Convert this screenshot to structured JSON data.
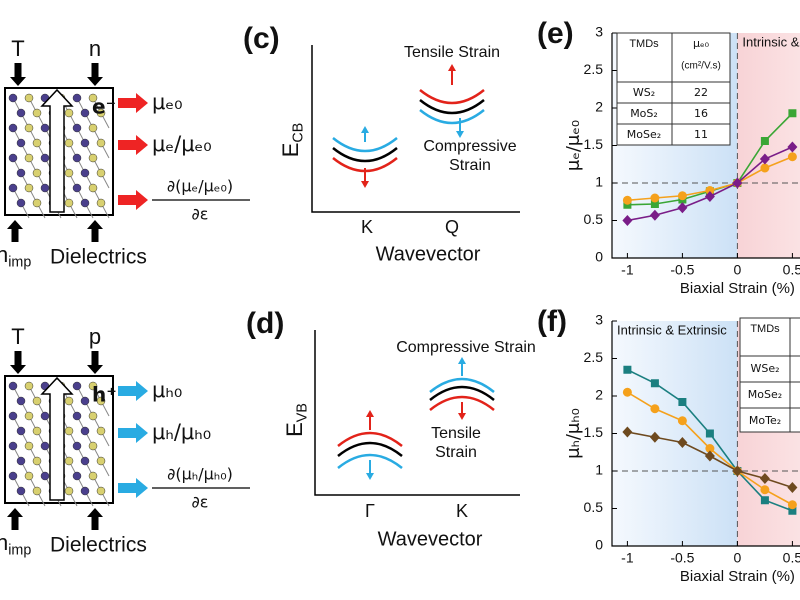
{
  "schematics": [
    {
      "top": [
        "T",
        "n"
      ],
      "carrier": "e⁻",
      "outputs": [
        "μₑ₀",
        "μₑ/μₑ₀"
      ],
      "derivative": {
        "numerator": "∂(μₑ/μₑ₀)",
        "denominator": "∂ε"
      },
      "bottom": {
        "impurity": {
          "base": "n",
          "sub": "imp"
        },
        "dielectrics": "Dielectrics"
      }
    },
    {
      "top": [
        "T",
        "p"
      ],
      "carrier": "h⁺",
      "outputs": [
        "μₕ₀",
        "μₕ/μₕ₀"
      ],
      "derivative": {
        "numerator": "∂(μₕ/μₕ₀)",
        "denominator": "∂ε"
      },
      "bottom": {
        "impurity": {
          "base": "n",
          "sub": "imp"
        },
        "dielectrics": "Dielectrics"
      }
    }
  ],
  "band_diagrams": [
    {
      "label": "(c)",
      "y_axis": {
        "base": "E",
        "sub": "CB"
      },
      "x_axis": "Wavevector",
      "valleys": [
        "K",
        "Q"
      ],
      "tensile": [
        "Tensile Strain"
      ],
      "compressive": [
        "Compressive",
        "Strain"
      ]
    },
    {
      "label": "(d)",
      "y_axis": {
        "base": "E",
        "sub": "VB"
      },
      "x_axis": "Wavevector",
      "valleys": [
        "Γ",
        "K"
      ],
      "tensile": [
        "Tensile",
        "Strain"
      ],
      "compressive": [
        "Compressive Strain"
      ]
    }
  ],
  "chart_data": [
    {
      "type": "line",
      "label": "(e)",
      "x_label": "Biaxial Strain (%)",
      "y_label": "μₑ/μₑ₀",
      "x": [
        -1,
        -0.75,
        -0.5,
        -0.25,
        0,
        0.25,
        0.5
      ],
      "series": [
        {
          "color": "#3aa635",
          "marker": "square",
          "values": [
            0.71,
            0.72,
            0.78,
            0.89,
            1,
            1.56,
            1.93
          ]
        },
        {
          "color": "#f5a11c",
          "marker": "circle",
          "values": [
            0.77,
            0.8,
            0.83,
            0.9,
            1,
            1.2,
            1.35
          ]
        },
        {
          "color": "#7a1d88",
          "marker": "diamond",
          "values": [
            0.5,
            0.57,
            0.67,
            0.82,
            1,
            1.32,
            1.48
          ]
        }
      ],
      "xlim": [
        -1.14,
        1.2
      ],
      "ylim": [
        0,
        3
      ],
      "xticks": [
        -1,
        -0.5,
        0,
        0.5
      ],
      "yticks": [
        0,
        0.5,
        1,
        1.5,
        2,
        2.5,
        3
      ],
      "reference_lines": {
        "x": 0,
        "y": 1
      },
      "region_label": "Intrinsic & Extrinsic",
      "region_side": "right",
      "table": {
        "header": [
          "TMDs",
          "μₑ₀"
        ],
        "unit": "(cm²/V.s)",
        "rows": [
          [
            "WS₂",
            22
          ],
          [
            "MoS₂",
            16
          ],
          [
            "MoSe₂",
            11
          ]
        ]
      }
    },
    {
      "type": "line",
      "label": "(f)",
      "x_label": "Biaxial Strain (%)",
      "y_label": "μₕ/μₕ₀",
      "x": [
        -1,
        -0.75,
        -0.5,
        -0.25,
        0,
        0.25,
        0.5
      ],
      "series": [
        {
          "color": "#1b7f80",
          "marker": "square",
          "values": [
            2.35,
            2.17,
            1.92,
            1.5,
            1,
            0.61,
            0.47
          ]
        },
        {
          "color": "#f5a11c",
          "marker": "circle",
          "values": [
            2.05,
            1.83,
            1.67,
            1.3,
            1,
            0.75,
            0.55
          ]
        },
        {
          "color": "#6e4a1f",
          "marker": "diamond",
          "values": [
            1.52,
            1.45,
            1.38,
            1.2,
            1,
            0.9,
            0.78
          ]
        }
      ],
      "xlim": [
        -1.14,
        1.2
      ],
      "ylim": [
        0,
        3
      ],
      "xticks": [
        -1,
        -0.5,
        0,
        0.5
      ],
      "yticks": [
        0,
        0.5,
        1,
        1.5,
        2,
        2.5,
        3
      ],
      "reference_lines": {
        "x": 0,
        "y": 1
      },
      "region_label": "Intrinsic & Extrinsic",
      "region_side": "left",
      "table": {
        "header": [
          "TMDs"
        ],
        "rows": [
          [
            "WSe₂"
          ],
          [
            "MoSe₂"
          ],
          [
            "MoTe₂"
          ]
        ]
      }
    }
  ]
}
